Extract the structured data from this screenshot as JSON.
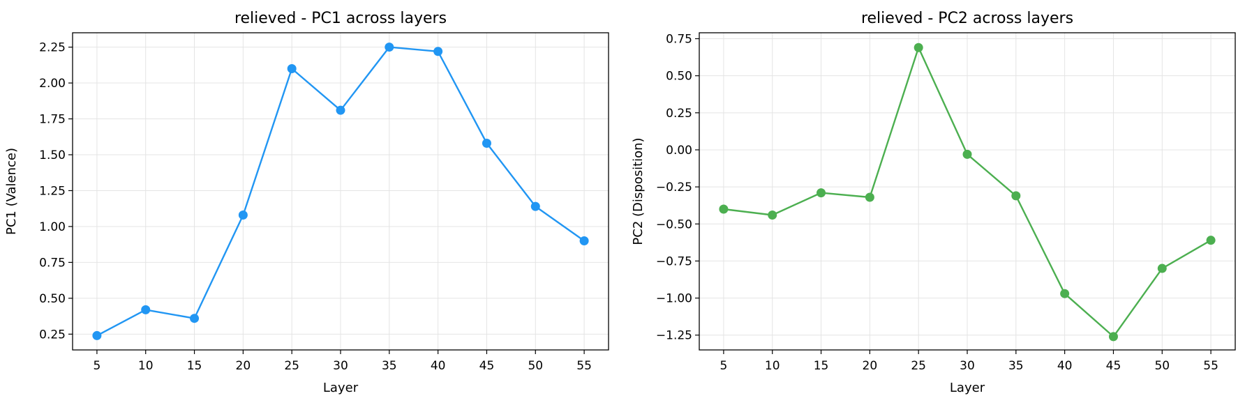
{
  "chart_data": [
    {
      "type": "line",
      "title": "relieved - PC1 across layers",
      "xlabel": "Layer",
      "ylabel": "PC1 (Valence)",
      "grid": true,
      "color": "#2196F3",
      "x": [
        5,
        10,
        15,
        20,
        25,
        30,
        35,
        40,
        45,
        50,
        55
      ],
      "values": [
        0.24,
        0.42,
        0.36,
        1.08,
        2.1,
        1.81,
        2.25,
        2.22,
        1.58,
        1.14,
        0.9
      ],
      "xticks": [
        5,
        10,
        15,
        20,
        25,
        30,
        35,
        40,
        45,
        50,
        55
      ],
      "yticks": [
        "0.25",
        "0.50",
        "0.75",
        "1.00",
        "1.25",
        "1.50",
        "1.75",
        "2.00",
        "2.25"
      ],
      "xlim": [
        2.5,
        57.5
      ],
      "ylim": [
        0.14,
        2.35
      ]
    },
    {
      "type": "line",
      "title": "relieved - PC2 across layers",
      "xlabel": "Layer",
      "ylabel": "PC2 (Disposition)",
      "grid": true,
      "color": "#4CAF50",
      "x": [
        5,
        10,
        15,
        20,
        25,
        30,
        35,
        40,
        45,
        50,
        55
      ],
      "values": [
        -0.4,
        -0.44,
        -0.29,
        -0.32,
        0.69,
        -0.03,
        -0.31,
        -0.97,
        -1.26,
        -0.8,
        -0.61
      ],
      "xticks": [
        5,
        10,
        15,
        20,
        25,
        30,
        35,
        40,
        45,
        50,
        55
      ],
      "yticks": [
        "0.75",
        "0.50",
        "0.25",
        "0.00",
        "−0.25",
        "−0.50",
        "−0.75",
        "−1.00",
        "−1.25"
      ],
      "xlim": [
        2.5,
        57.5
      ],
      "ylim": [
        -1.35,
        0.79
      ]
    }
  ]
}
